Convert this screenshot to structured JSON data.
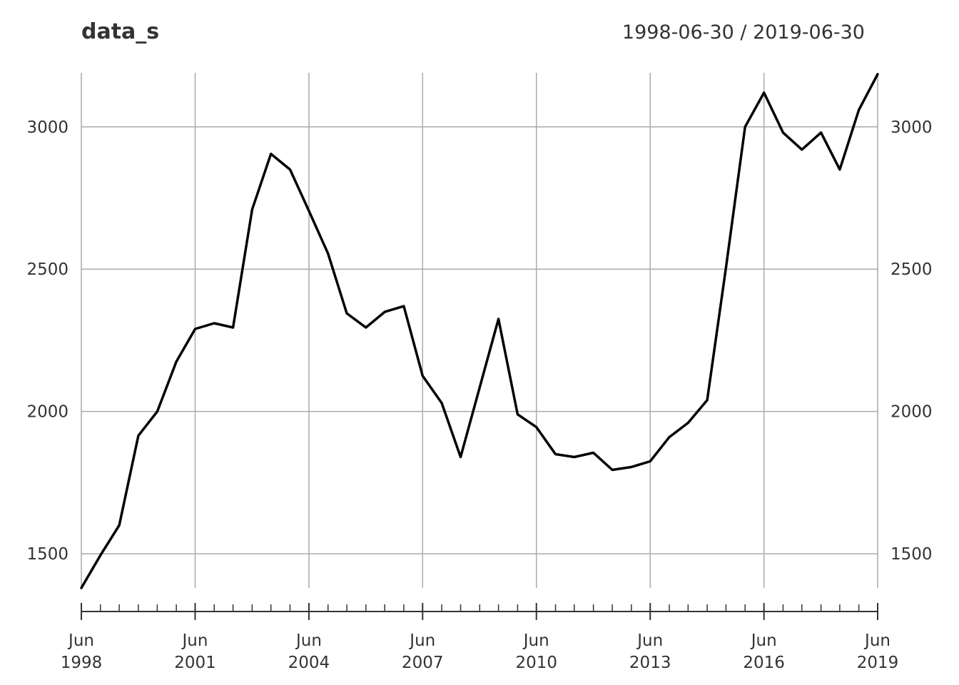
{
  "chart_data": {
    "type": "line",
    "title": "data_s",
    "date_range": "1998-06-30 / 2019-06-30",
    "xlabel": "",
    "ylabel": "",
    "ylim": [
      1380,
      3190
    ],
    "grid": true,
    "y_ticks": [
      1500,
      2000,
      2500,
      3000
    ],
    "y_tick_labels": [
      "1500",
      "2000",
      "2500",
      "3000"
    ],
    "x_ticks": [
      {
        "date": "1998-06-30",
        "month": "Jun",
        "year": "1998"
      },
      {
        "date": "2001-06-30",
        "month": "Jun",
        "year": "2001"
      },
      {
        "date": "2004-06-30",
        "month": "Jun",
        "year": "2004"
      },
      {
        "date": "2007-06-30",
        "month": "Jun",
        "year": "2007"
      },
      {
        "date": "2010-06-30",
        "month": "Jun",
        "year": "2010"
      },
      {
        "date": "2013-06-30",
        "month": "Jun",
        "year": "2013"
      },
      {
        "date": "2016-06-30",
        "month": "Jun",
        "year": "2016"
      },
      {
        "date": "2019-06-30",
        "month": "Jun",
        "year": "2019"
      }
    ],
    "series": [
      {
        "x": [
          "1998-06-30",
          "1998-12-31",
          "1999-06-30",
          "1999-12-31",
          "2000-06-30",
          "2000-12-31",
          "2001-06-30",
          "2001-12-31",
          "2002-06-30",
          "2002-12-31",
          "2003-06-30",
          "2003-12-31",
          "2004-06-30",
          "2004-12-31",
          "2005-06-30",
          "2005-12-31",
          "2006-06-30",
          "2006-12-31",
          "2007-06-30",
          "2007-12-31",
          "2008-06-30",
          "2008-12-31",
          "2009-06-30",
          "2009-12-31",
          "2010-06-30",
          "2010-12-31",
          "2011-06-30",
          "2011-12-31",
          "2012-06-30",
          "2012-12-31",
          "2013-06-30",
          "2013-12-31",
          "2014-06-30",
          "2014-12-31",
          "2015-06-30",
          "2015-12-31",
          "2016-06-30",
          "2016-12-31",
          "2017-06-30",
          "2017-12-31",
          "2018-06-30",
          "2018-12-31",
          "2019-06-30"
        ],
        "values": [
          1380,
          1495,
          1600,
          1915,
          2000,
          2175,
          2290,
          2310,
          2295,
          2710,
          2905,
          2850,
          2705,
          2555,
          2345,
          2295,
          2350,
          2370,
          2125,
          2030,
          1840,
          2085,
          2325,
          1990,
          1945,
          1850,
          1840,
          1855,
          1795,
          1805,
          1825,
          1910,
          1960,
          2040,
          2505,
          3000,
          3120,
          2980,
          2920,
          2980,
          2850,
          3060,
          3185
        ]
      }
    ]
  }
}
